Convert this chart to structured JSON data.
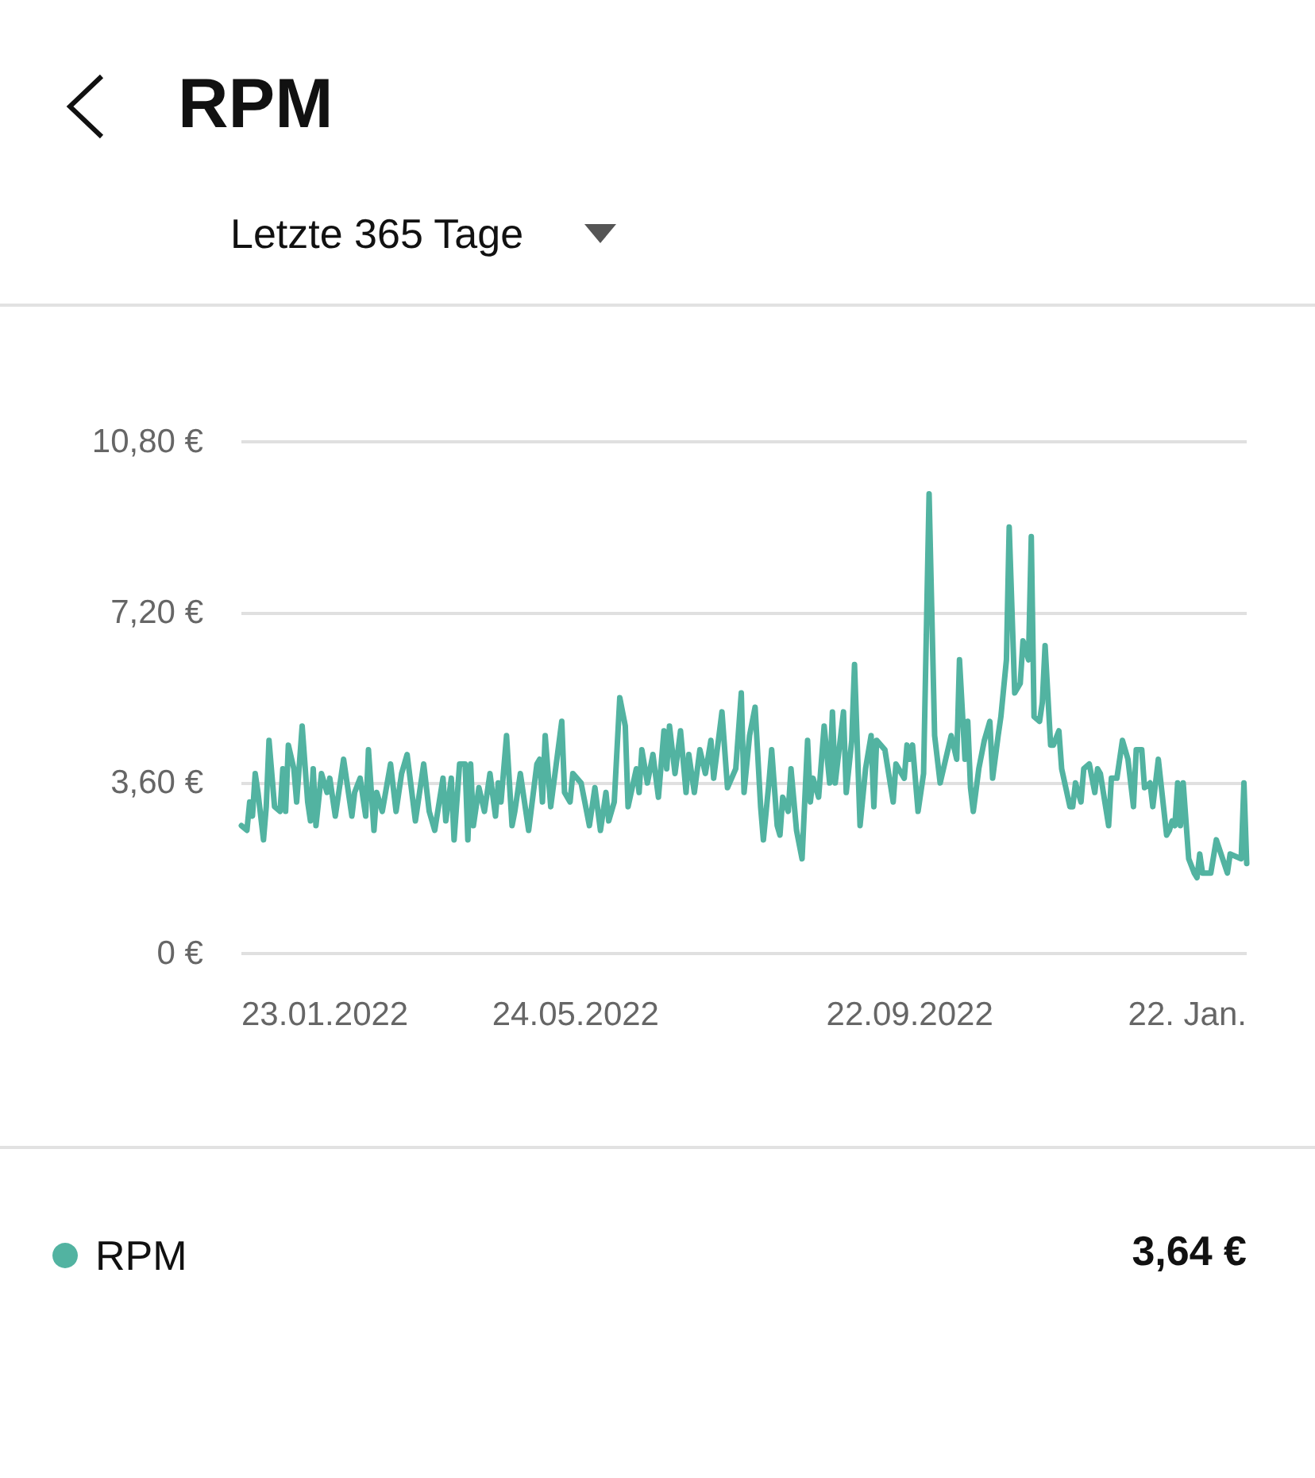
{
  "chart_data": {
    "type": "line",
    "title": "RPM",
    "subtitle": "Letzte 365 Tage",
    "annotations": [
      "3,64 €"
    ],
    "legend": "bottom left",
    "grid": "y",
    "ylim": [
      0,
      10.8
    ],
    "yticks": [
      {
        "value": 0,
        "label": "0 €"
      },
      {
        "value": 3.6,
        "label": "3,60 €"
      },
      {
        "value": 7.2,
        "label": "7,20 €"
      },
      {
        "value": 10.8,
        "label": "10,80 €"
      }
    ],
    "xlim": [
      "2022-01-23",
      "2023-01-22"
    ],
    "xticks": [
      {
        "value": "2022-01-23",
        "label": "23.01.2022"
      },
      {
        "value": "2022-05-24",
        "label": "24.05.2022"
      },
      {
        "value": "2022-09-22",
        "label": "22.09.2022"
      },
      {
        "value": "2023-01-22",
        "label": "22. Jan."
      }
    ],
    "x": [
      "2022-01-23",
      "2022-01-25",
      "2022-01-26",
      "2022-01-27",
      "2022-01-28",
      "2022-01-29",
      "2022-01-31",
      "2022-02-01",
      "2022-02-02",
      "2022-02-04",
      "2022-02-06",
      "2022-02-07",
      "2022-02-08",
      "2022-02-09",
      "2022-02-11",
      "2022-02-12",
      "2022-02-14",
      "2022-02-16",
      "2022-02-17",
      "2022-02-18",
      "2022-02-19",
      "2022-02-21",
      "2022-02-23",
      "2022-02-24",
      "2022-02-26",
      "2022-03-01",
      "2022-03-04",
      "2022-03-05",
      "2022-03-07",
      "2022-03-09",
      "2022-03-10",
      "2022-03-12",
      "2022-03-13",
      "2022-03-15",
      "2022-03-18",
      "2022-03-20",
      "2022-03-22",
      "2022-03-24",
      "2022-03-27",
      "2022-03-30",
      "2022-04-01",
      "2022-04-03",
      "2022-04-06",
      "2022-04-07",
      "2022-04-09",
      "2022-04-10",
      "2022-04-12",
      "2022-04-14",
      "2022-04-15",
      "2022-04-16",
      "2022-04-17",
      "2022-04-19",
      "2022-04-21",
      "2022-04-23",
      "2022-04-25",
      "2022-04-26",
      "2022-04-27",
      "2022-04-29",
      "2022-05-01",
      "2022-05-02",
      "2022-05-04",
      "2022-05-07",
      "2022-05-10",
      "2022-05-11",
      "2022-05-12",
      "2022-05-13",
      "2022-05-15",
      "2022-05-19",
      "2022-05-20",
      "2022-05-22",
      "2022-05-23",
      "2022-05-26",
      "2022-05-29",
      "2022-05-31",
      "2022-06-02",
      "2022-06-04",
      "2022-06-05",
      "2022-06-07",
      "2022-06-09",
      "2022-06-11",
      "2022-06-12",
      "2022-06-15",
      "2022-06-16",
      "2022-06-17",
      "2022-06-19",
      "2022-06-21",
      "2022-06-23",
      "2022-06-25",
      "2022-06-26",
      "2022-06-27",
      "2022-06-29",
      "2022-07-01",
      "2022-07-03",
      "2022-07-04",
      "2022-07-06",
      "2022-07-08",
      "2022-07-10",
      "2022-07-12",
      "2022-07-13",
      "2022-07-16",
      "2022-07-18",
      "2022-07-21",
      "2022-07-23",
      "2022-07-24",
      "2022-07-26",
      "2022-07-28",
      "2022-07-30",
      "2022-07-31",
      "2022-08-02",
      "2022-08-03",
      "2022-08-05",
      "2022-08-06",
      "2022-08-07",
      "2022-08-09",
      "2022-08-10",
      "2022-08-12",
      "2022-08-14",
      "2022-08-16",
      "2022-08-17",
      "2022-08-18",
      "2022-08-20",
      "2022-08-22",
      "2022-08-24",
      "2022-08-25",
      "2022-08-26",
      "2022-08-29",
      "2022-08-30",
      "2022-09-01",
      "2022-09-02",
      "2022-09-04",
      "2022-09-06",
      "2022-09-08",
      "2022-09-09",
      "2022-09-10",
      "2022-09-13",
      "2022-09-16",
      "2022-09-17",
      "2022-09-20",
      "2022-09-21",
      "2022-09-22",
      "2022-09-23",
      "2022-09-25",
      "2022-09-27",
      "2022-09-29",
      "2022-10-01",
      "2022-10-03",
      "2022-10-05",
      "2022-10-07",
      "2022-10-09",
      "2022-10-10",
      "2022-10-12",
      "2022-10-13",
      "2022-10-14",
      "2022-10-15",
      "2022-10-17",
      "2022-10-19",
      "2022-10-21",
      "2022-10-22",
      "2022-10-24",
      "2022-10-25",
      "2022-10-27",
      "2022-10-28",
      "2022-10-30",
      "2022-11-01",
      "2022-11-02",
      "2022-11-04",
      "2022-11-05",
      "2022-11-06",
      "2022-11-08",
      "2022-11-09",
      "2022-11-10",
      "2022-11-12",
      "2022-11-13",
      "2022-11-15",
      "2022-11-16",
      "2022-11-19",
      "2022-11-20",
      "2022-11-21",
      "2022-11-23",
      "2022-11-24",
      "2022-11-26",
      "2022-11-28",
      "2022-11-29",
      "2022-11-30",
      "2022-12-03",
      "2022-12-04",
      "2022-12-06",
      "2022-12-08",
      "2022-12-10",
      "2022-12-12",
      "2022-12-13",
      "2022-12-15",
      "2022-12-16",
      "2022-12-18",
      "2022-12-19",
      "2022-12-21",
      "2022-12-24",
      "2022-12-25",
      "2022-12-26",
      "2022-12-27",
      "2022-12-28",
      "2022-12-29",
      "2022-12-30",
      "2023-01-01",
      "2023-01-03",
      "2023-01-04",
      "2023-01-05",
      "2023-01-06",
      "2023-01-09",
      "2023-01-11",
      "2023-01-15",
      "2023-01-16",
      "2023-01-20",
      "2023-01-21",
      "2023-01-22"
    ],
    "series": [
      {
        "name": "RPM",
        "color": "#52b3a1",
        "values": [
          2.7,
          2.6,
          3.2,
          2.9,
          3.8,
          3.4,
          2.4,
          3.1,
          4.5,
          3.1,
          3.0,
          3.9,
          3.0,
          4.4,
          3.9,
          3.2,
          4.8,
          3.2,
          2.8,
          3.9,
          2.7,
          3.8,
          3.4,
          3.7,
          2.9,
          4.1,
          2.9,
          3.4,
          3.7,
          2.9,
          4.3,
          2.6,
          3.4,
          3.0,
          4.0,
          3.0,
          3.8,
          4.2,
          2.8,
          4.0,
          3.0,
          2.6,
          3.7,
          2.8,
          3.7,
          2.4,
          4.0,
          4.0,
          2.4,
          4.0,
          2.7,
          3.5,
          3.0,
          3.8,
          2.9,
          3.6,
          3.2,
          4.6,
          2.7,
          3.0,
          3.8,
          2.6,
          4.0,
          4.1,
          3.2,
          4.6,
          3.1,
          4.9,
          3.4,
          3.2,
          3.8,
          3.6,
          2.7,
          3.5,
          2.6,
          3.4,
          2.8,
          3.2,
          5.4,
          4.8,
          3.1,
          3.9,
          3.4,
          4.3,
          3.6,
          4.2,
          3.3,
          4.7,
          3.9,
          4.8,
          3.8,
          4.7,
          3.4,
          4.2,
          3.4,
          4.3,
          3.8,
          4.5,
          3.7,
          5.1,
          3.5,
          3.9,
          5.5,
          3.4,
          4.6,
          5.2,
          3.1,
          2.4,
          3.6,
          4.3,
          2.7,
          2.5,
          3.3,
          3.0,
          3.9,
          2.6,
          2.0,
          4.5,
          3.2,
          3.7,
          3.3,
          4.8,
          3.6,
          5.1,
          3.6,
          5.1,
          3.4,
          4.5,
          6.1,
          2.7,
          3.9,
          4.6,
          3.1,
          4.5,
          4.3,
          3.2,
          4.0,
          3.7,
          4.4,
          4.1,
          4.4,
          3.0,
          3.8,
          9.7,
          4.6,
          3.6,
          4.1,
          4.6,
          4.1,
          6.2,
          4.1,
          4.9,
          3.5,
          3.0,
          3.9,
          4.5,
          4.9,
          3.7,
          4.6,
          5.0,
          6.2,
          9.0,
          5.5,
          5.7,
          6.6,
          6.2,
          8.8,
          5.0,
          4.9,
          5.3,
          6.5,
          4.4,
          4.4,
          4.7,
          3.9,
          3.1,
          3.1,
          3.6,
          3.2,
          3.9,
          4.0,
          3.4,
          3.9,
          3.8,
          2.7,
          3.7,
          3.7,
          4.5,
          4.1,
          3.1,
          4.3,
          4.3,
          3.5,
          3.6,
          3.1,
          4.1,
          2.5,
          2.6,
          2.8,
          2.7,
          3.6,
          2.7,
          3.6,
          2.0,
          1.7,
          1.6,
          2.1,
          1.7,
          1.7,
          2.4,
          1.7,
          2.1,
          2.0,
          3.6,
          1.9
        ]
      }
    ]
  }
}
